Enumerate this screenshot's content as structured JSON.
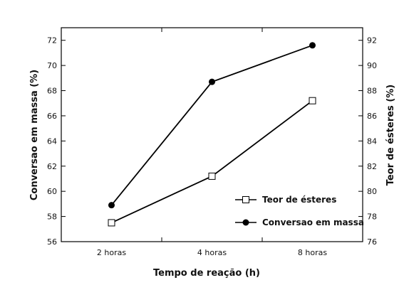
{
  "chart_data": {
    "type": "line",
    "categories": [
      "2 horas",
      "4 horas",
      "8 horas"
    ],
    "xlabel": "Tempo de reação (h)",
    "ylabel": "Conversao em massa (%)",
    "ylabel_right": "Teor de ésteres (%)",
    "ylim": [
      56,
      73
    ],
    "ylim_right": [
      76,
      93
    ],
    "yticks": [
      56,
      58,
      60,
      62,
      64,
      66,
      68,
      70,
      72
    ],
    "yticks_right": [
      76,
      78,
      80,
      82,
      84,
      86,
      88,
      90,
      92
    ],
    "grid": false,
    "legend_position": "lower-right",
    "series": [
      {
        "name": "Teor de ésteres",
        "axis": "right",
        "marker": "open-square",
        "color": "#000000",
        "values": [
          77.5,
          81.2,
          87.2
        ]
      },
      {
        "name": "Conversao em massa",
        "axis": "left",
        "marker": "filled-circle",
        "color": "#000000",
        "values": [
          58.9,
          68.7,
          71.6
        ]
      }
    ]
  }
}
